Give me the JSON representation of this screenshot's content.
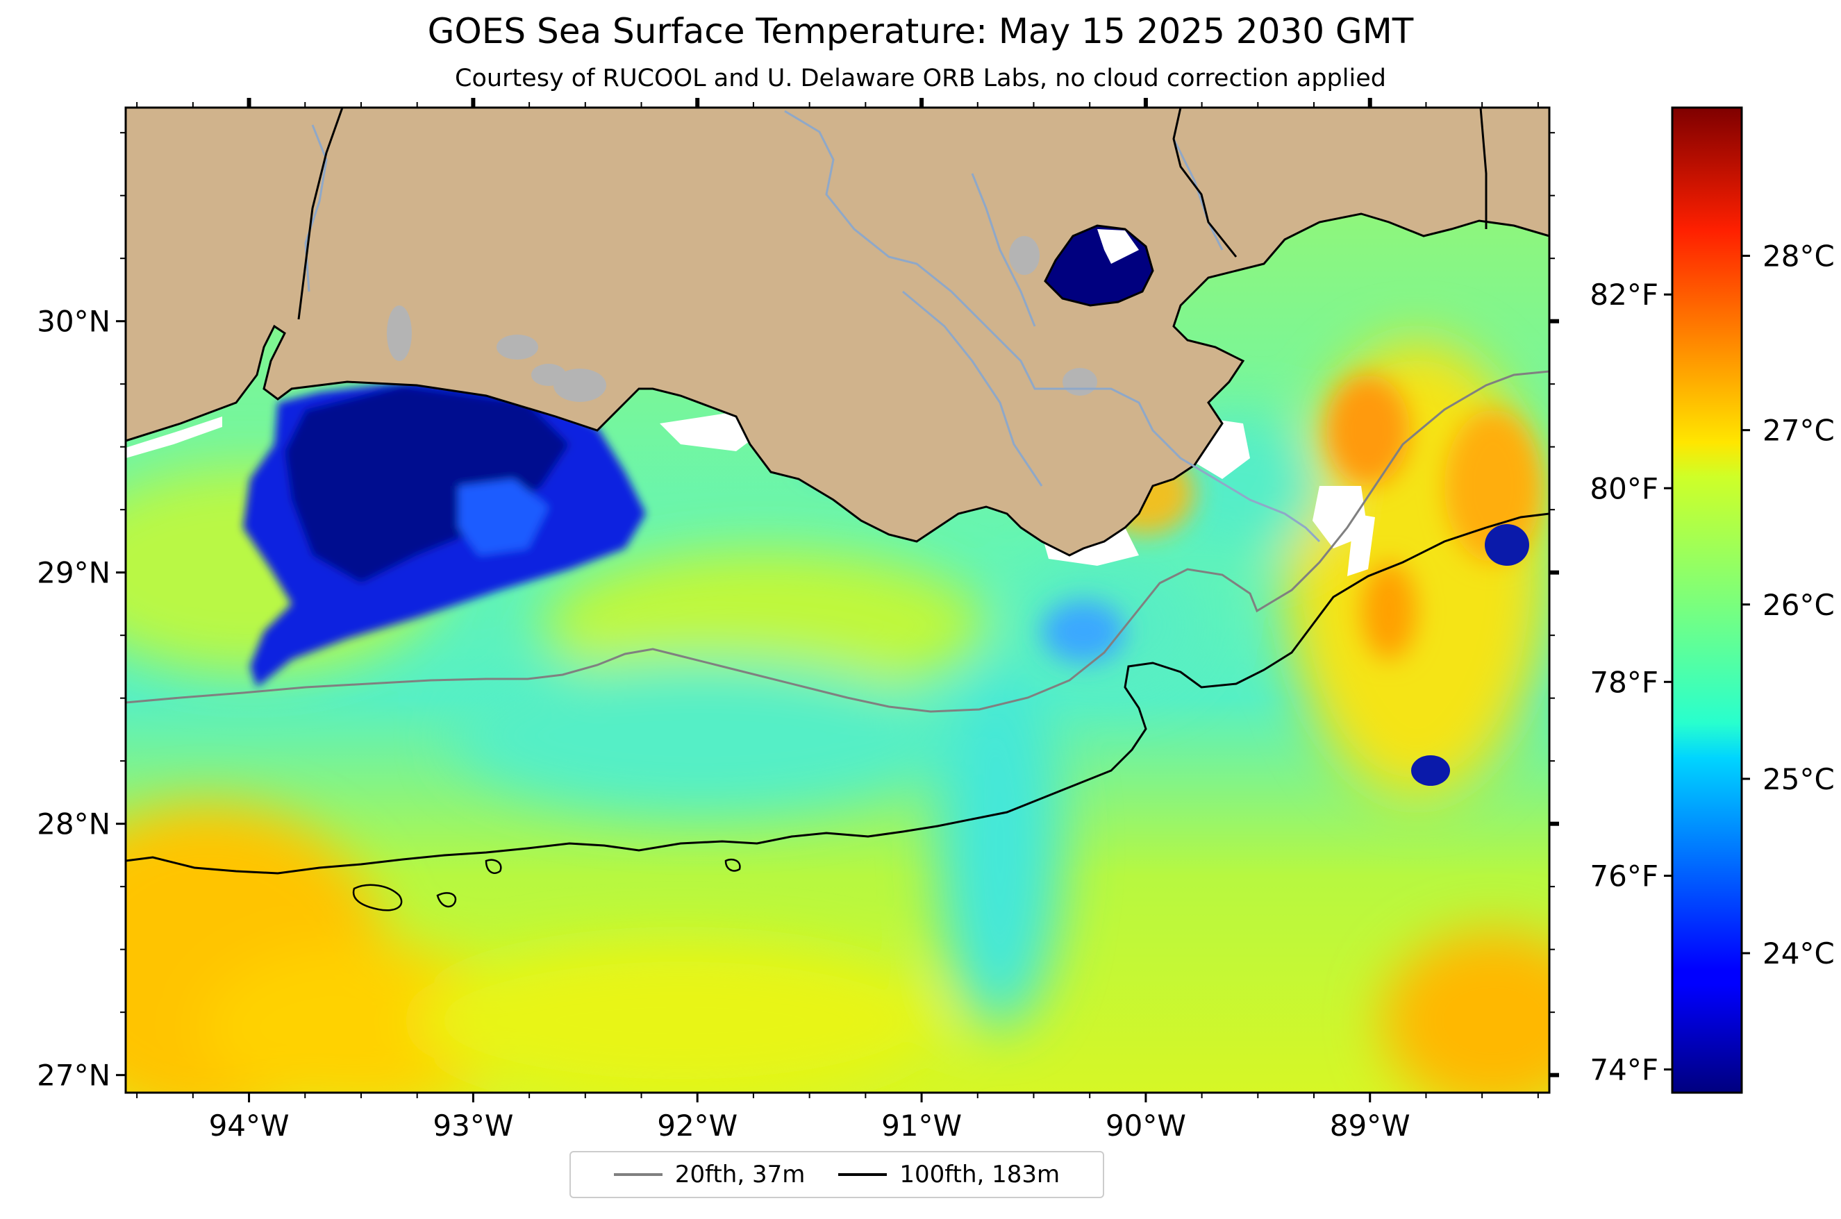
{
  "title": "GOES Sea Surface Temperature: May 15 2025 2030 GMT",
  "subtitle": "Courtesy of RUCOOL and U. Delaware ORB Labs, no cloud correction applied",
  "colors": {
    "land": "#d0b38c",
    "lakes": "#b4b4b4",
    "rivers": "#8fa8c8",
    "isobath_20": "#808080",
    "isobath_100": "#000000",
    "coast": "#000000"
  },
  "map": {
    "lon_range": [
      -94.55,
      -88.2
    ],
    "lat_range": [
      26.93,
      30.85
    ],
    "lat_ticks": [
      {
        "value": 30,
        "label": "30°N"
      },
      {
        "value": 29,
        "label": "29°N"
      },
      {
        "value": 28,
        "label": "28°N"
      },
      {
        "value": 27,
        "label": "27°N"
      }
    ],
    "lon_ticks": [
      {
        "value": -94,
        "label": "94°W"
      },
      {
        "value": -93,
        "label": "93°W"
      },
      {
        "value": -92,
        "label": "92°W"
      },
      {
        "value": -91,
        "label": "91°W"
      },
      {
        "value": -90,
        "label": "90°W"
      },
      {
        "value": -89,
        "label": "89°W"
      }
    ]
  },
  "colorbar": {
    "colormap": "jet",
    "range_c": [
      23.2,
      28.85
    ],
    "celsius_ticks": [
      {
        "value": 24,
        "label": "24°C"
      },
      {
        "value": 25,
        "label": "25°C"
      },
      {
        "value": 26,
        "label": "26°C"
      },
      {
        "value": 27,
        "label": "27°C"
      },
      {
        "value": 28,
        "label": "28°C"
      }
    ],
    "fahrenheit_ticks": [
      {
        "value_c": 23.333,
        "label": "74°F"
      },
      {
        "value_c": 24.444,
        "label": "76°F"
      },
      {
        "value_c": 25.556,
        "label": "78°F"
      },
      {
        "value_c": 26.667,
        "label": "80°F"
      },
      {
        "value_c": 27.778,
        "label": "82°F"
      }
    ]
  },
  "legend": {
    "entries": [
      {
        "label": "20fth, 37m",
        "color": "#808080"
      },
      {
        "label": "100fth, 183m",
        "color": "#000000"
      }
    ]
  }
}
